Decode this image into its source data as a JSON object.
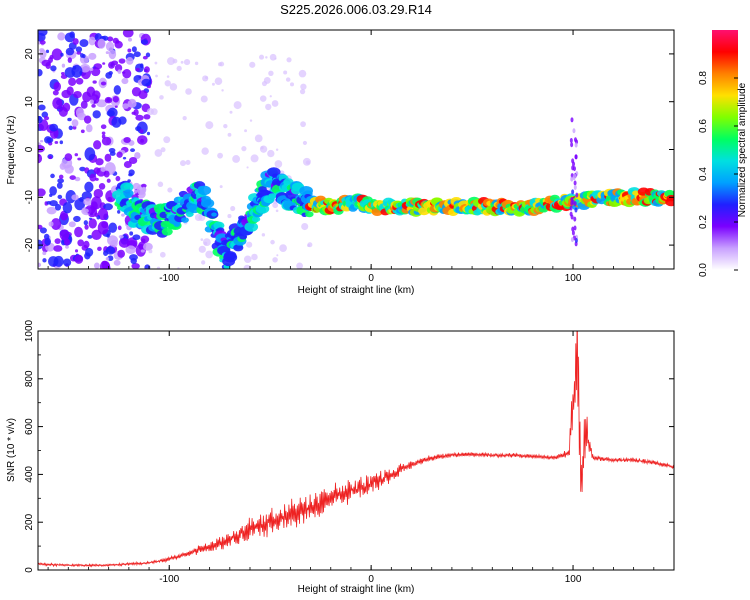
{
  "title": "S225.2026.006.03.29.R14",
  "chart_data": [
    {
      "type": "heatmap",
      "xlabel": "Height of straight line (km)",
      "ylabel": "Frequency (Hz)",
      "xlim": [
        -165,
        150
      ],
      "ylim": [
        -25,
        25
      ],
      "xticks": [
        "-100",
        "0",
        "100"
      ],
      "yticks": [
        "20",
        "10",
        "0",
        "-10",
        "-20"
      ],
      "colorbar": {
        "label": "Normalized spectral amplitude",
        "range": [
          0,
          1
        ],
        "ticks": [
          "0.0",
          "0.2",
          "0.4",
          "0.6",
          "0.8"
        ],
        "colormap": [
          "#ffffff",
          "#c8a0ff",
          "#7a00ff",
          "#2020ff",
          "#00a0ff",
          "#00e0e0",
          "#00ff60",
          "#80ff00",
          "#ffe000",
          "#ff8000",
          "#ff0000",
          "#ff1070"
        ]
      },
      "ridge_points": [
        {
          "x": -120,
          "y": -13
        },
        {
          "x": -100,
          "y": -15
        },
        {
          "x": -85,
          "y": -9
        },
        {
          "x": -72,
          "y": -22
        },
        {
          "x": -50,
          "y": -7
        },
        {
          "x": -35,
          "y": -11
        },
        {
          "x": -20,
          "y": -12
        },
        {
          "x": -5,
          "y": -11
        },
        {
          "x": 0,
          "y": -12
        },
        {
          "x": 20,
          "y": -12
        },
        {
          "x": 40,
          "y": -12
        },
        {
          "x": 60,
          "y": -12
        },
        {
          "x": 80,
          "y": -12
        },
        {
          "x": 95,
          "y": -11
        },
        {
          "x": 100,
          "y": -11
        },
        {
          "x": 120,
          "y": -10
        },
        {
          "x": 148,
          "y": -10
        }
      ]
    },
    {
      "type": "line",
      "xlabel": "Height of straight line (km)",
      "ylabel": "SNR (10 * v/v)",
      "xlim": [
        -165,
        150
      ],
      "ylim": [
        0,
        1000
      ],
      "xticks": [
        "-100",
        "0",
        "100"
      ],
      "yticks": [
        "0",
        "200",
        "400",
        "600",
        "800",
        "1000"
      ],
      "color": "#ee2222",
      "series": [
        {
          "x": [
            -165,
            -150,
            -130,
            -110,
            -100,
            -90,
            -80,
            -70,
            -60,
            -50,
            -40,
            -30,
            -20,
            -10,
            0,
            10,
            20,
            30,
            40,
            50,
            60,
            70,
            80,
            90,
            95,
            98,
            100,
            102,
            104,
            106,
            110,
            120,
            130,
            140,
            150
          ],
          "values": [
            25,
            20,
            20,
            30,
            45,
            70,
            100,
            130,
            170,
            200,
            230,
            260,
            300,
            330,
            360,
            400,
            440,
            470,
            480,
            485,
            480,
            480,
            475,
            470,
            480,
            490,
            700,
            950,
            350,
            600,
            470,
            460,
            460,
            450,
            430
          ],
          "spread": [
            10,
            8,
            8,
            10,
            15,
            20,
            40,
            60,
            80,
            90,
            100,
            100,
            90,
            80,
            70,
            50,
            30,
            20,
            15,
            15,
            15,
            15,
            15,
            15,
            20,
            30,
            250,
            350,
            250,
            200,
            20,
            15,
            15,
            15,
            15
          ]
        }
      ]
    }
  ]
}
